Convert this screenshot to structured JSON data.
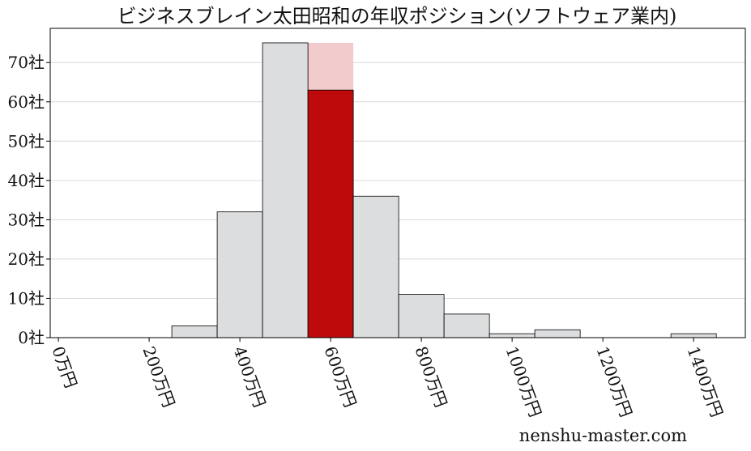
{
  "chart_data": {
    "type": "histogram",
    "title": "ビジネスブレイン太田昭和の年収ポジション(ソフトウェア業内)",
    "bins": [
      -50,
      50,
      150,
      250,
      350,
      450,
      550,
      650,
      750,
      850,
      950,
      1050,
      1150,
      1250,
      1350,
      1450
    ],
    "values": [
      0,
      0,
      0,
      3,
      32,
      75,
      63,
      36,
      11,
      6,
      1,
      2,
      0,
      0,
      1
    ],
    "color": "#dcdddf",
    "highlight": {
      "bins": [
        550,
        650
      ],
      "value": 75,
      "color": "#f2cccc",
      "bar_color": "#be0a0a"
    },
    "xlim": [
      -18,
      1514
    ],
    "ylim": [
      0,
      78.7
    ],
    "xticks": [
      {
        "value": 0,
        "label": "0万円"
      },
      {
        "value": 200,
        "label": "200万円"
      },
      {
        "value": 400,
        "label": "400万円"
      },
      {
        "value": 600,
        "label": "600万円"
      },
      {
        "value": 800,
        "label": "800万円"
      },
      {
        "value": 1000,
        "label": "1000万円"
      },
      {
        "value": 1200,
        "label": "1200万円"
      },
      {
        "value": 1400,
        "label": "1400万円"
      }
    ],
    "yticks": [
      {
        "value": 0,
        "label": "0社"
      },
      {
        "value": 10,
        "label": "10社"
      },
      {
        "value": 20,
        "label": "20社"
      },
      {
        "value": 30,
        "label": "30社"
      },
      {
        "value": 40,
        "label": "40社"
      },
      {
        "value": 50,
        "label": "50社"
      },
      {
        "value": 60,
        "label": "60社"
      },
      {
        "value": 70,
        "label": "70社"
      }
    ],
    "grid": true,
    "watermark": "nenshu-master.com"
  }
}
